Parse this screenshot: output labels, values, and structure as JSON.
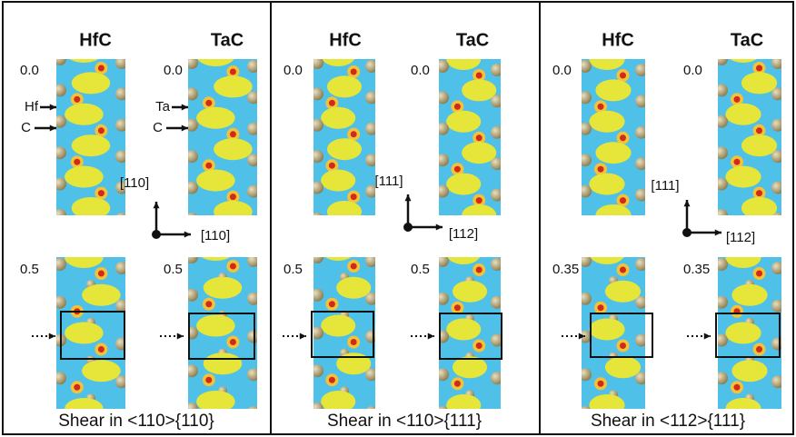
{
  "panels": [
    {
      "materials": [
        "HfC",
        "TaC"
      ],
      "top_strain": [
        "0.0",
        "0.0"
      ],
      "bottom_strain": [
        "0.5",
        "0.5"
      ],
      "atom_labels": [
        [
          "Hf",
          "C"
        ],
        [
          "Ta",
          "C"
        ]
      ],
      "axis_vertical": "[110]",
      "axis_horizontal": "[110]",
      "caption": "Shear in <110>{110}"
    },
    {
      "materials": [
        "HfC",
        "TaC"
      ],
      "top_strain": [
        "0.0",
        "0.0"
      ],
      "bottom_strain": [
        "0.5",
        "0.5"
      ],
      "axis_vertical": "[111]",
      "axis_horizontal": "[112]",
      "caption": "Shear in <110>{111}"
    },
    {
      "materials": [
        "HfC",
        "TaC"
      ],
      "top_strain": [
        "0.0",
        "0.0"
      ],
      "bottom_strain": [
        "0.35",
        "0.35"
      ],
      "axis_vertical": "[111]",
      "axis_horizontal": "[112]",
      "caption": "Shear in <112>{111}"
    }
  ]
}
